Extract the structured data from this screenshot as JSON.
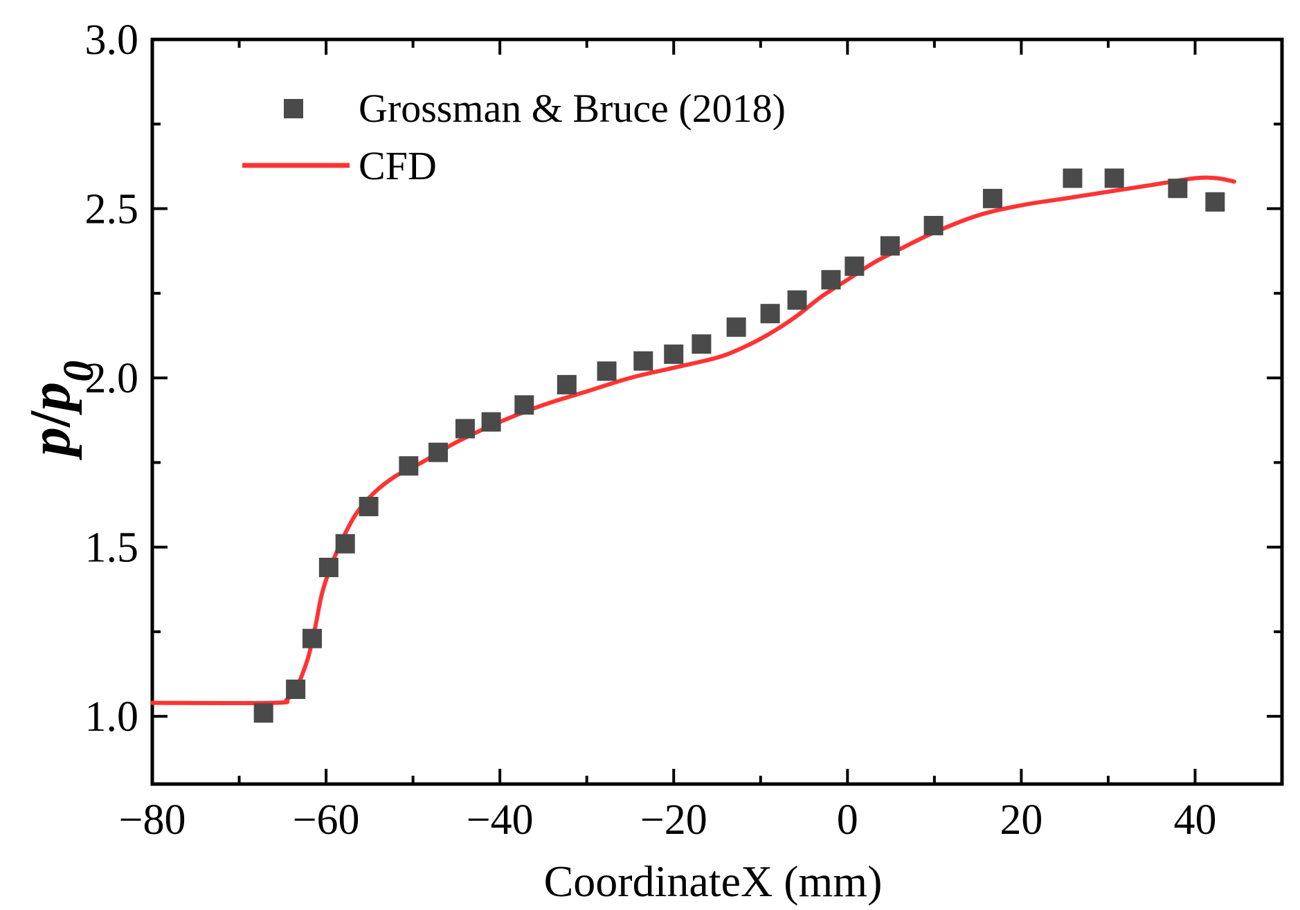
{
  "chart_data": {
    "type": "scatter",
    "xlabel": "CoordinateX (mm)",
    "ylabel": {
      "main": "p",
      "sep": "/",
      "var": "p",
      "sub": "0"
    },
    "xlim": [
      -80,
      50
    ],
    "ylim": [
      0.8,
      3.0
    ],
    "xticks": [
      -80,
      -60,
      -40,
      -20,
      0,
      20,
      40
    ],
    "xtick_labels": [
      "−80",
      "−60",
      "−40",
      "−20",
      "0",
      "20",
      "40"
    ],
    "yticks": [
      1.0,
      1.5,
      2.0,
      2.5,
      3.0
    ],
    "ytick_labels": [
      "1.0",
      "1.5",
      "2.0",
      "2.5",
      "3.0"
    ],
    "grid": false,
    "legend_position": "top-left",
    "series": [
      {
        "name": "Grossman & Bruce (2018)",
        "kind": "markers",
        "marker": "square",
        "color": "#4a4a4a",
        "x": [
          -67.2,
          -63.5,
          -61.6,
          -59.7,
          -57.8,
          -55.1,
          -50.5,
          -47.1,
          -44.0,
          -41.0,
          -37.2,
          -32.3,
          -27.7,
          -23.5,
          -20.0,
          -16.8,
          -12.8,
          -8.9,
          -5.8,
          -1.9,
          0.8,
          4.9,
          9.9,
          16.7,
          25.9,
          30.7,
          38.0,
          42.3
        ],
        "y": [
          1.01,
          1.08,
          1.23,
          1.44,
          1.51,
          1.62,
          1.74,
          1.78,
          1.85,
          1.87,
          1.92,
          1.98,
          2.02,
          2.05,
          2.07,
          2.1,
          2.15,
          2.19,
          2.23,
          2.29,
          2.33,
          2.39,
          2.45,
          2.53,
          2.59,
          2.59,
          2.56,
          2.52
        ]
      },
      {
        "name": "CFD",
        "kind": "line",
        "color": "#ff3333",
        "x": [
          -80,
          -66,
          -64.5,
          -63.5,
          -62.8,
          -62,
          -61.2,
          -60.5,
          -59.5,
          -58,
          -56.5,
          -54.5,
          -52,
          -49,
          -45,
          -40,
          -35,
          -30,
          -25,
          -20,
          -15,
          -12,
          -9,
          -6,
          -3,
          0,
          3,
          6,
          10,
          15,
          20,
          25,
          30,
          35,
          40,
          42.5,
          44.5
        ],
        "y": [
          1.04,
          1.04,
          1.05,
          1.08,
          1.12,
          1.18,
          1.27,
          1.36,
          1.44,
          1.53,
          1.6,
          1.66,
          1.71,
          1.75,
          1.81,
          1.87,
          1.92,
          1.96,
          2.0,
          2.03,
          2.06,
          2.09,
          2.13,
          2.18,
          2.24,
          2.29,
          2.34,
          2.38,
          2.43,
          2.48,
          2.51,
          2.53,
          2.55,
          2.57,
          2.59,
          2.59,
          2.58
        ]
      }
    ]
  }
}
